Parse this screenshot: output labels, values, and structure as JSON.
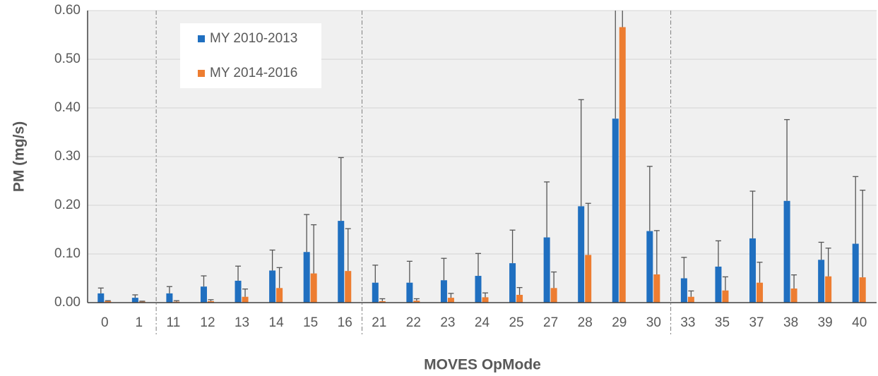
{
  "chart_data": {
    "type": "bar",
    "x_label": "MOVES OpMode",
    "y_label": "PM (mg/s)",
    "categories": [
      "0",
      "1",
      "11",
      "12",
      "13",
      "14",
      "15",
      "16",
      "21",
      "22",
      "23",
      "24",
      "25",
      "27",
      "28",
      "29",
      "30",
      "33",
      "35",
      "37",
      "38",
      "39",
      "40"
    ],
    "series": [
      {
        "name": "MY 2010-2013",
        "color": "#1f6fc0",
        "values": [
          0.019,
          0.01,
          0.019,
          0.033,
          0.045,
          0.066,
          0.104,
          0.168,
          0.041,
          0.041,
          0.046,
          0.055,
          0.081,
          0.134,
          0.198,
          0.378,
          0.147,
          0.05,
          0.074,
          0.132,
          0.209,
          0.088,
          0.121
        ],
        "errors": [
          0.011,
          0.006,
          0.014,
          0.022,
          0.03,
          0.042,
          0.077,
          0.13,
          0.036,
          0.044,
          0.045,
          0.046,
          0.068,
          0.114,
          0.219,
          0.3,
          0.133,
          0.043,
          0.053,
          0.097,
          0.167,
          0.036,
          0.138
        ]
      },
      {
        "name": "MY 2014-2016",
        "color": "#ed7d31",
        "values": [
          0.003,
          0.002,
          0.002,
          0.003,
          0.012,
          0.03,
          0.06,
          0.065,
          0.003,
          0.004,
          0.01,
          0.011,
          0.016,
          0.03,
          0.098,
          0.566,
          0.058,
          0.012,
          0.025,
          0.041,
          0.029,
          0.054,
          0.052
        ],
        "errors": [
          0.001,
          0.001,
          0.002,
          0.003,
          0.016,
          0.042,
          0.1,
          0.087,
          0.005,
          0.004,
          0.009,
          0.009,
          0.015,
          0.033,
          0.106,
          0.1,
          0.09,
          0.012,
          0.028,
          0.042,
          0.028,
          0.058,
          0.179
        ]
      }
    ],
    "ylim": [
      0,
      0.6
    ],
    "yticks": [
      {
        "value": 0,
        "label": "0.00"
      },
      {
        "value": 0.1,
        "label": "0.10"
      },
      {
        "value": 0.2,
        "label": "0.20"
      },
      {
        "value": 0.3,
        "label": "0.30"
      },
      {
        "value": 0.4,
        "label": "0.40"
      },
      {
        "value": 0.5,
        "label": "0.50"
      },
      {
        "value": 0.6,
        "label": "0.60"
      }
    ],
    "grid": true,
    "legend": "upper left"
  }
}
